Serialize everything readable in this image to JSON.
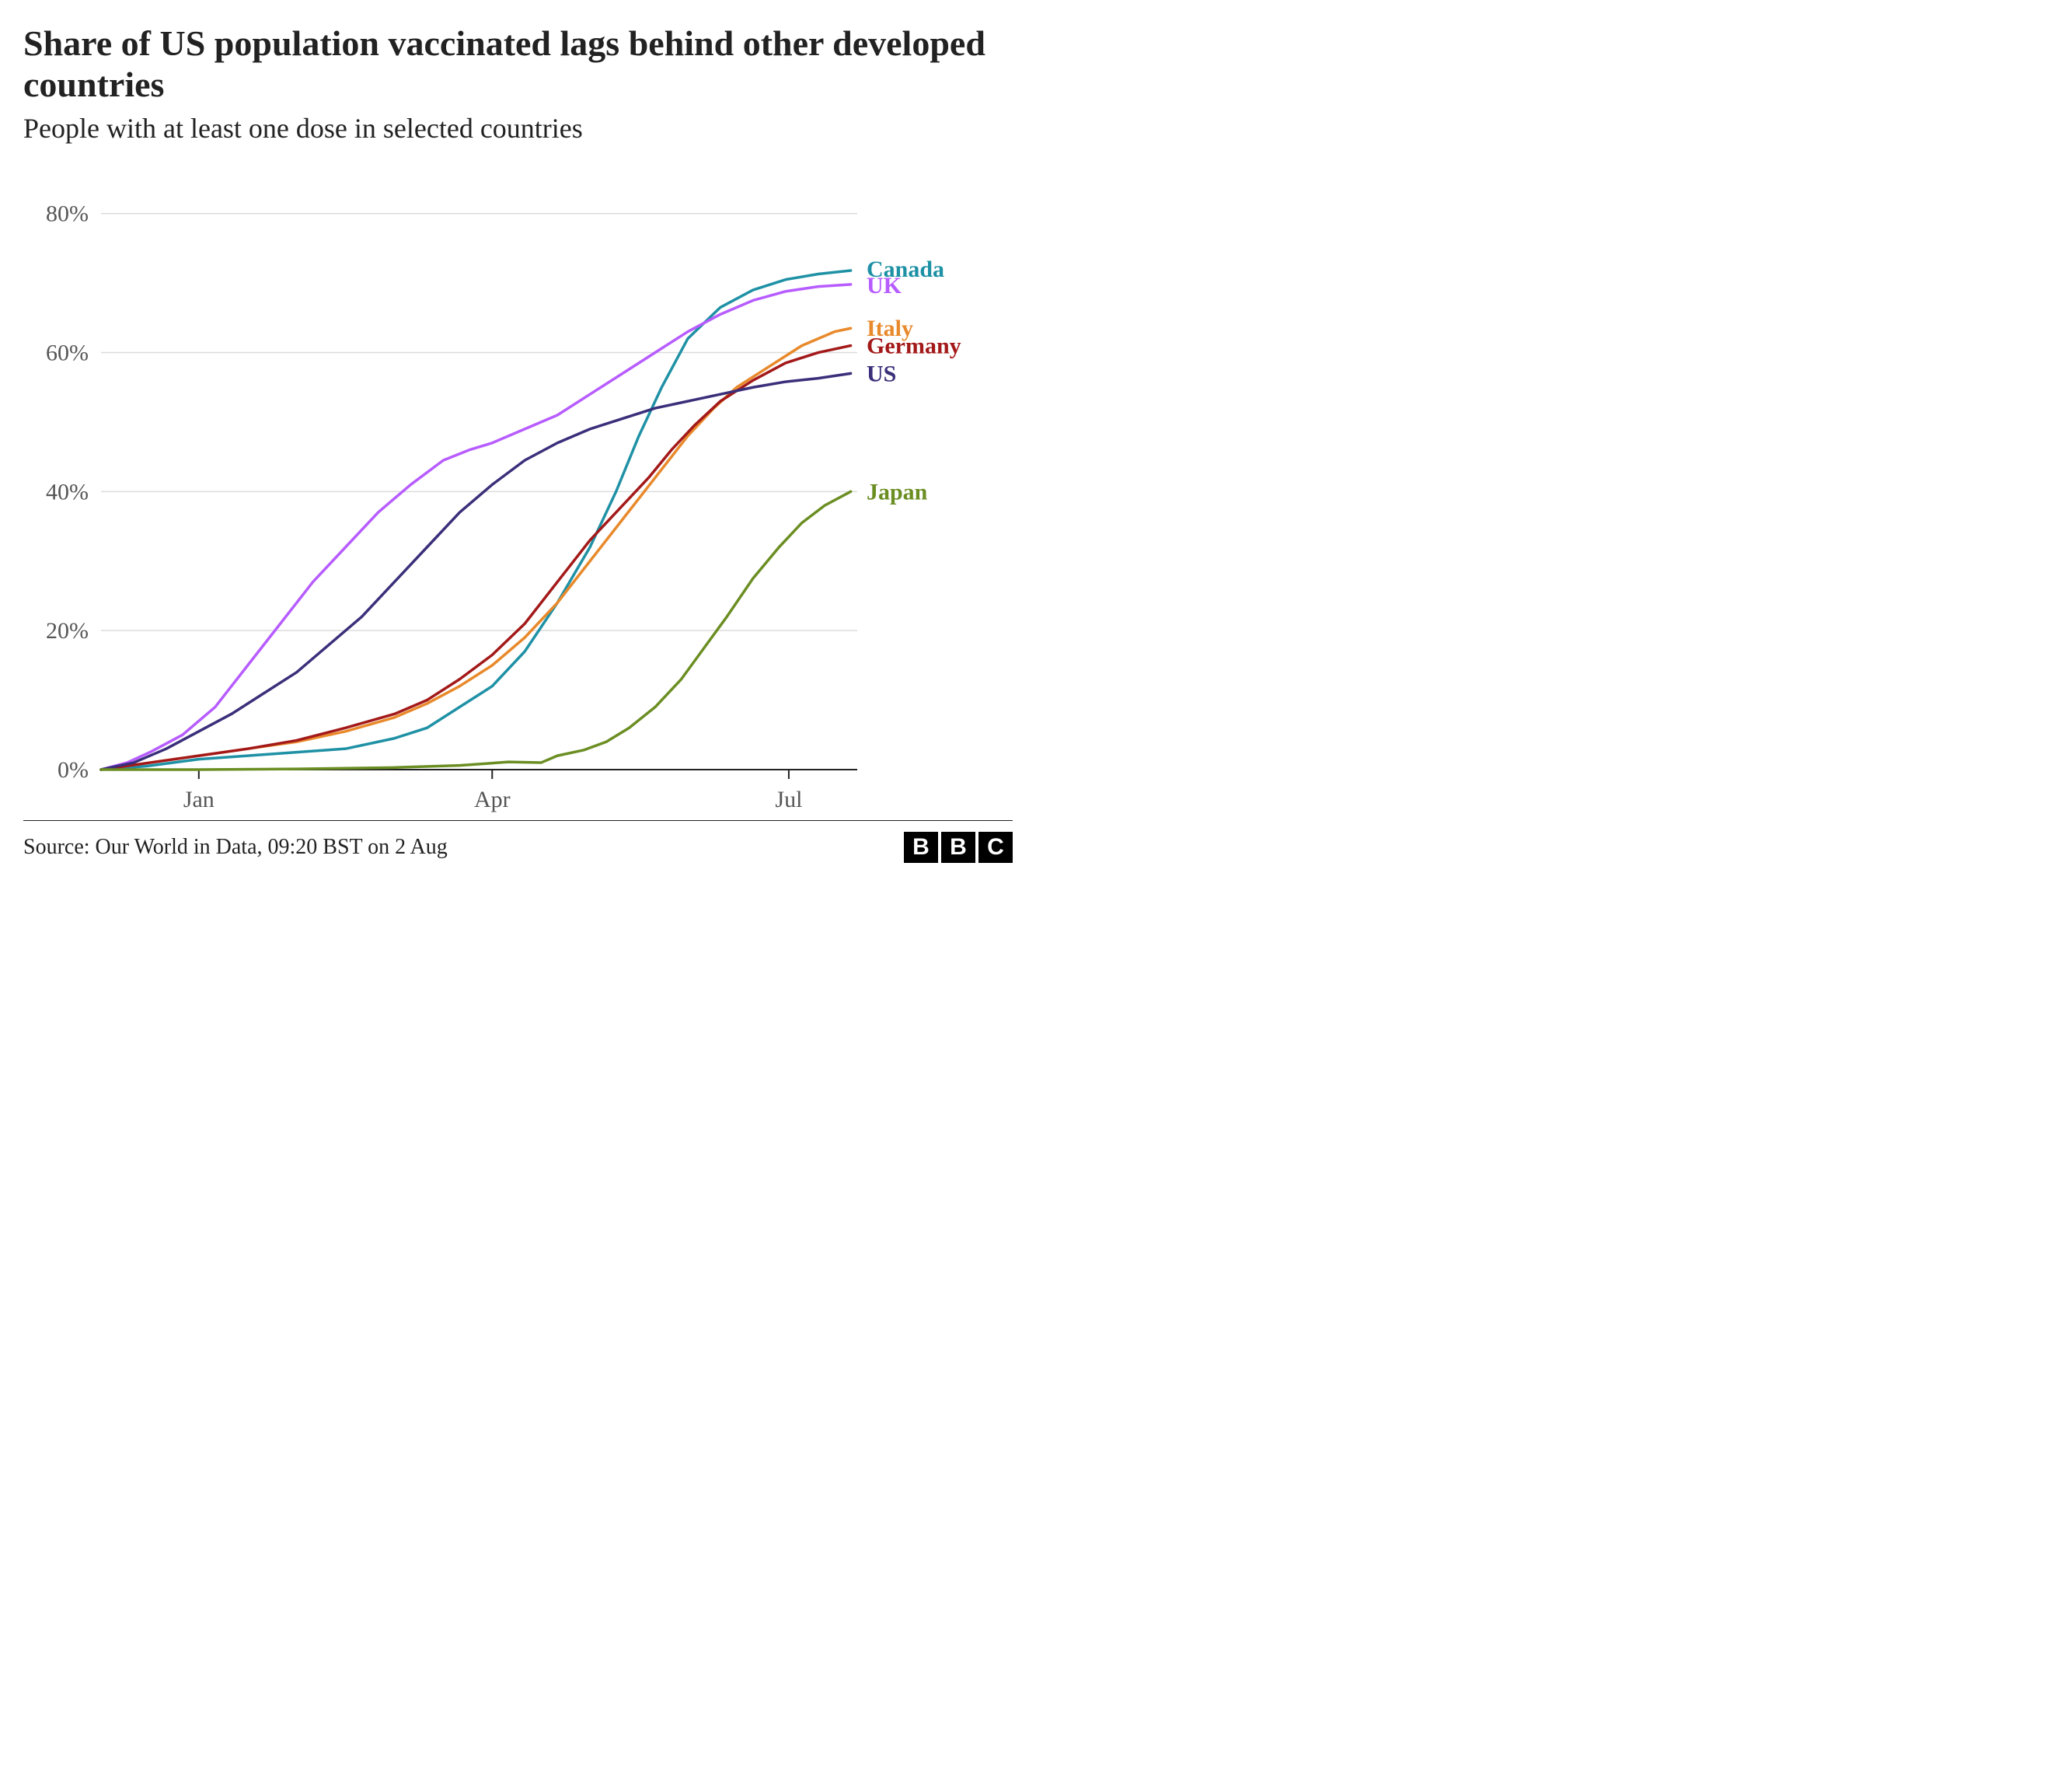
{
  "title": "Share of US population vaccinated lags behind other developed countries",
  "subtitle": "People with at least one dose in selected countries",
  "source": "Source: Our World in Data, 09:20 BST on 2 Aug",
  "logo": [
    "B",
    "B",
    "C"
  ],
  "chart": {
    "type": "line",
    "background_color": "#ffffff",
    "grid_color": "#dcdcdc",
    "axis_color": "#222222",
    "title_fontsize": 46,
    "subtitle_fontsize": 36,
    "tick_fontsize": 30,
    "label_fontsize": 30,
    "source_fontsize": 28,
    "line_width": 3.5,
    "ylim": [
      0,
      85
    ],
    "yticks": [
      0,
      20,
      40,
      60,
      80
    ],
    "ytick_labels": [
      "0%",
      "20%",
      "40%",
      "60%",
      "80%"
    ],
    "x_range_days": 232,
    "xticks_days": [
      30,
      120,
      211
    ],
    "xtick_labels": [
      "Jan",
      "Apr",
      "Jul"
    ],
    "series": [
      {
        "name": "Canada",
        "color": "#1f91a5",
        "label_y": 72,
        "data": [
          [
            0,
            0
          ],
          [
            14,
            0.5
          ],
          [
            30,
            1.5
          ],
          [
            45,
            2
          ],
          [
            60,
            2.5
          ],
          [
            75,
            3
          ],
          [
            90,
            4.5
          ],
          [
            100,
            6
          ],
          [
            110,
            9
          ],
          [
            120,
            12
          ],
          [
            130,
            17
          ],
          [
            140,
            24
          ],
          [
            150,
            32
          ],
          [
            158,
            40
          ],
          [
            165,
            48
          ],
          [
            172,
            55
          ],
          [
            180,
            62
          ],
          [
            190,
            66.5
          ],
          [
            200,
            69
          ],
          [
            210,
            70.5
          ],
          [
            220,
            71.3
          ],
          [
            230,
            71.8
          ]
        ]
      },
      {
        "name": "UK",
        "color": "#b75cff",
        "label_y": 69.7,
        "data": [
          [
            0,
            0
          ],
          [
            8,
            1
          ],
          [
            15,
            2.5
          ],
          [
            25,
            5
          ],
          [
            35,
            9
          ],
          [
            45,
            15
          ],
          [
            55,
            21
          ],
          [
            65,
            27
          ],
          [
            75,
            32
          ],
          [
            85,
            37
          ],
          [
            95,
            41
          ],
          [
            105,
            44.5
          ],
          [
            113,
            46
          ],
          [
            120,
            47
          ],
          [
            130,
            49
          ],
          [
            140,
            51
          ],
          [
            150,
            54
          ],
          [
            160,
            57
          ],
          [
            170,
            60
          ],
          [
            180,
            63
          ],
          [
            190,
            65.5
          ],
          [
            200,
            67.5
          ],
          [
            210,
            68.8
          ],
          [
            220,
            69.5
          ],
          [
            230,
            69.8
          ]
        ]
      },
      {
        "name": "Italy",
        "color": "#e8892b",
        "label_y": 63.5,
        "data": [
          [
            0,
            0
          ],
          [
            15,
            1
          ],
          [
            30,
            2
          ],
          [
            45,
            3
          ],
          [
            60,
            4
          ],
          [
            75,
            5.5
          ],
          [
            90,
            7.5
          ],
          [
            100,
            9.5
          ],
          [
            110,
            12
          ],
          [
            120,
            15
          ],
          [
            130,
            19
          ],
          [
            140,
            24
          ],
          [
            150,
            30
          ],
          [
            160,
            36
          ],
          [
            170,
            42
          ],
          [
            180,
            48
          ],
          [
            188,
            52
          ],
          [
            195,
            55
          ],
          [
            205,
            58
          ],
          [
            215,
            61
          ],
          [
            225,
            63
          ],
          [
            230,
            63.5
          ]
        ]
      },
      {
        "name": "Germany",
        "color": "#a31919",
        "label_y": 61,
        "data": [
          [
            0,
            0
          ],
          [
            15,
            1
          ],
          [
            30,
            2
          ],
          [
            45,
            3
          ],
          [
            60,
            4.2
          ],
          [
            75,
            6
          ],
          [
            90,
            8
          ],
          [
            100,
            10
          ],
          [
            110,
            13
          ],
          [
            120,
            16.5
          ],
          [
            130,
            21
          ],
          [
            140,
            27
          ],
          [
            150,
            33
          ],
          [
            160,
            38
          ],
          [
            168,
            42
          ],
          [
            175,
            46
          ],
          [
            182,
            49.5
          ],
          [
            190,
            53
          ],
          [
            200,
            56
          ],
          [
            210,
            58.5
          ],
          [
            220,
            60
          ],
          [
            230,
            61
          ]
        ]
      },
      {
        "name": "US",
        "color": "#3a2f7a",
        "label_y": 57,
        "data": [
          [
            0,
            0
          ],
          [
            10,
            1
          ],
          [
            20,
            3
          ],
          [
            30,
            5.5
          ],
          [
            40,
            8
          ],
          [
            50,
            11
          ],
          [
            60,
            14
          ],
          [
            70,
            18
          ],
          [
            80,
            22
          ],
          [
            90,
            27
          ],
          [
            100,
            32
          ],
          [
            110,
            37
          ],
          [
            120,
            41
          ],
          [
            130,
            44.5
          ],
          [
            140,
            47
          ],
          [
            150,
            49
          ],
          [
            160,
            50.5
          ],
          [
            170,
            52
          ],
          [
            180,
            53
          ],
          [
            190,
            54
          ],
          [
            200,
            55
          ],
          [
            210,
            55.8
          ],
          [
            220,
            56.3
          ],
          [
            230,
            57
          ]
        ]
      },
      {
        "name": "Japan",
        "color": "#6b8e23",
        "label_y": 40,
        "data": [
          [
            0,
            0
          ],
          [
            30,
            0
          ],
          [
            60,
            0.1
          ],
          [
            90,
            0.3
          ],
          [
            110,
            0.6
          ],
          [
            125,
            1.1
          ],
          [
            135,
            1
          ],
          [
            140,
            2
          ],
          [
            148,
            2.8
          ],
          [
            155,
            4
          ],
          [
            162,
            6
          ],
          [
            170,
            9
          ],
          [
            178,
            13
          ],
          [
            185,
            17.5
          ],
          [
            192,
            22
          ],
          [
            200,
            27.5
          ],
          [
            208,
            32
          ],
          [
            215,
            35.5
          ],
          [
            222,
            38
          ],
          [
            230,
            40
          ]
        ]
      }
    ]
  }
}
